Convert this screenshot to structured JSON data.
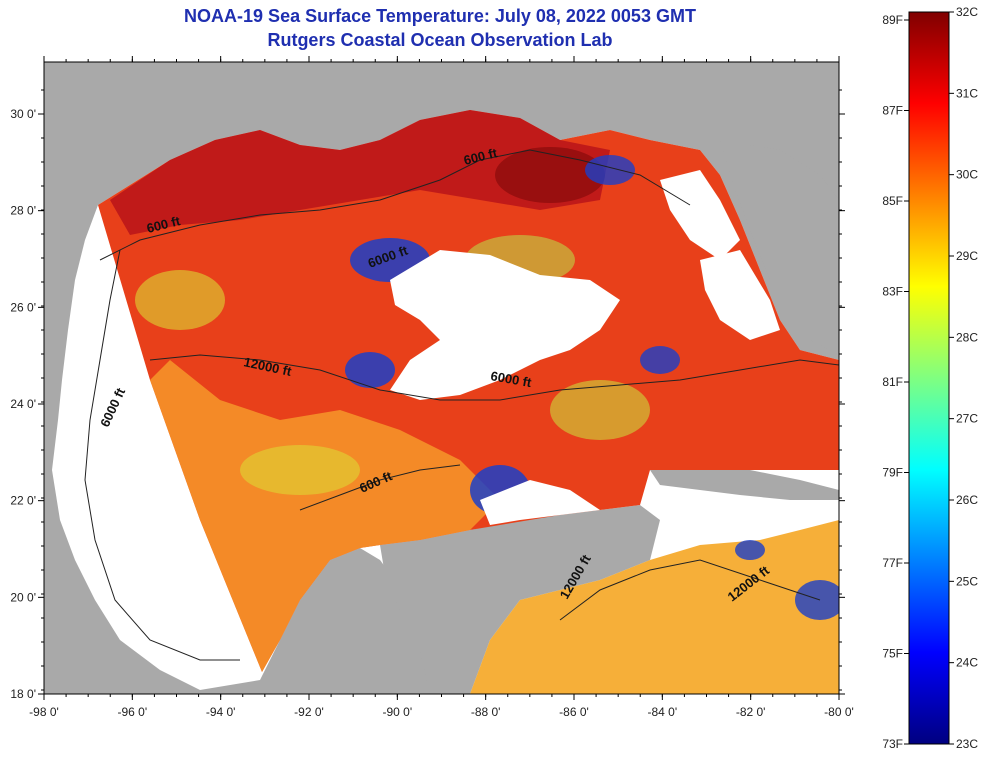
{
  "title": {
    "line1": "NOAA-19 Sea Surface Temperature:  July 08, 2022 0053 GMT",
    "line2": "Rutgers Coastal Ocean Observation Lab"
  },
  "axes": {
    "lon_labels": [
      "-98 0'",
      "-96 0'",
      "-94 0'",
      "-92 0'",
      "-90 0'",
      "-88 0'",
      "-86 0'",
      "-84 0'",
      "-82 0'",
      "-80 0'"
    ],
    "lat_labels": [
      "30 0'",
      "28 0'",
      "26 0'",
      "24 0'",
      "22 0'",
      "20 0'",
      "18 0'"
    ]
  },
  "contours": {
    "labels": [
      "600 ft",
      "600 ft",
      "6000 ft",
      "12000 ft",
      "6000 ft",
      "6000 ft",
      "600 ft",
      "12000 ft",
      "12000 ft"
    ]
  },
  "colorbar": {
    "fahrenheit": [
      "89F",
      "87F",
      "85F",
      "83F",
      "81F",
      "79F",
      "77F",
      "75F",
      "73F"
    ],
    "celsius": [
      "32C",
      "31C",
      "30C",
      "29C",
      "28C",
      "27C",
      "26C",
      "25C",
      "24C",
      "23C"
    ],
    "gradient": [
      "#000080",
      "#0000ff",
      "#0080ff",
      "#00ffff",
      "#80ff80",
      "#ffff00",
      "#ff8000",
      "#ff0000",
      "#800000"
    ]
  },
  "colors": {
    "land": "#a9a9a9",
    "cloud": "#ffffff",
    "ocean_warm": "#e8401a",
    "ocean_hot": "#a80f0f",
    "ocean_mid": "#f7a020",
    "ocean_cool": "#1c3fc8"
  }
}
